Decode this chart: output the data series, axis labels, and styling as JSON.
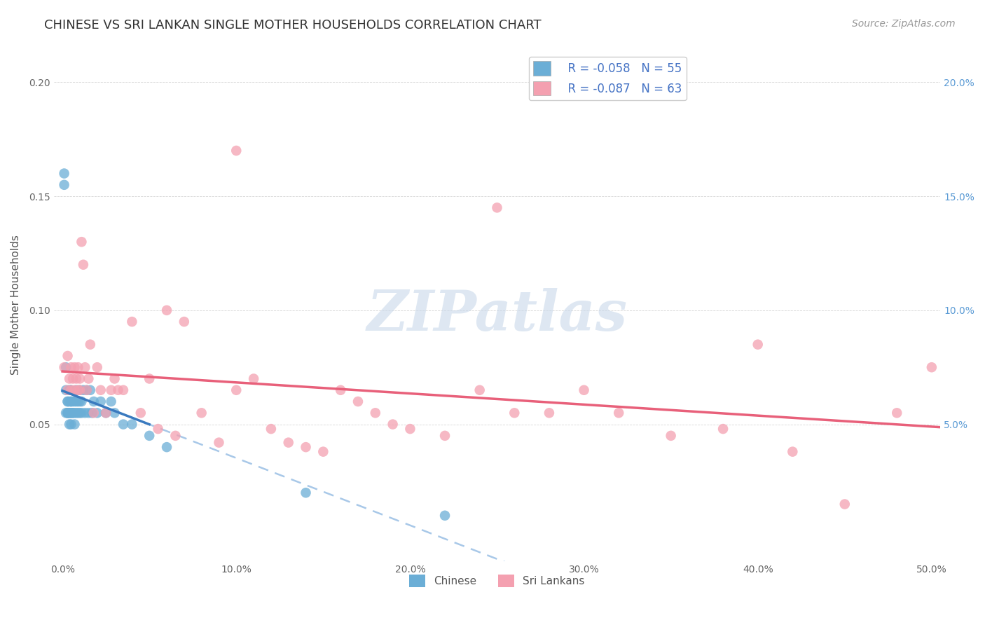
{
  "title": "CHINESE VS SRI LANKAN SINGLE MOTHER HOUSEHOLDS CORRELATION CHART",
  "source": "Source: ZipAtlas.com",
  "xlabel_ticks": [
    "0.0%",
    "10.0%",
    "20.0%",
    "30.0%",
    "40.0%",
    "50.0%"
  ],
  "xlabel_values": [
    0.0,
    0.1,
    0.2,
    0.3,
    0.4,
    0.5
  ],
  "ylabel": "Single Mother Households",
  "ylabel_right_ticks": [
    "20.0%",
    "15.0%",
    "10.0%",
    "5.0%"
  ],
  "ylabel_right_values": [
    0.2,
    0.15,
    0.1,
    0.05
  ],
  "xlim": [
    -0.005,
    0.505
  ],
  "ylim": [
    -0.01,
    0.215
  ],
  "chinese_R": -0.058,
  "chinese_N": 55,
  "srilankan_R": -0.087,
  "srilankan_N": 63,
  "chinese_color": "#6baed6",
  "srilankan_color": "#f4a0b0",
  "chinese_line_color": "#3a7abf",
  "srilankan_line_color": "#e8607a",
  "trend_line_dash_color": "#a8c8e8",
  "watermark_color": "#c8d8ea",
  "title_fontsize": 13,
  "source_fontsize": 10,
  "legend_fontsize": 12,
  "axis_label_fontsize": 11,
  "tick_fontsize": 10,
  "chinese_x": [
    0.001,
    0.001,
    0.002,
    0.002,
    0.002,
    0.003,
    0.003,
    0.003,
    0.003,
    0.003,
    0.004,
    0.004,
    0.004,
    0.004,
    0.004,
    0.005,
    0.005,
    0.005,
    0.005,
    0.005,
    0.005,
    0.006,
    0.006,
    0.006,
    0.007,
    0.007,
    0.007,
    0.008,
    0.008,
    0.008,
    0.009,
    0.009,
    0.01,
    0.01,
    0.01,
    0.011,
    0.011,
    0.012,
    0.013,
    0.014,
    0.015,
    0.016,
    0.017,
    0.018,
    0.02,
    0.022,
    0.025,
    0.028,
    0.03,
    0.035,
    0.04,
    0.05,
    0.06,
    0.14,
    0.22
  ],
  "chinese_y": [
    0.155,
    0.16,
    0.075,
    0.065,
    0.055,
    0.06,
    0.055,
    0.055,
    0.055,
    0.06,
    0.05,
    0.055,
    0.06,
    0.055,
    0.065,
    0.05,
    0.055,
    0.06,
    0.055,
    0.06,
    0.065,
    0.055,
    0.06,
    0.055,
    0.05,
    0.055,
    0.06,
    0.06,
    0.055,
    0.065,
    0.055,
    0.06,
    0.06,
    0.055,
    0.065,
    0.055,
    0.06,
    0.065,
    0.055,
    0.065,
    0.055,
    0.065,
    0.055,
    0.06,
    0.055,
    0.06,
    0.055,
    0.06,
    0.055,
    0.05,
    0.05,
    0.045,
    0.04,
    0.02,
    0.01
  ],
  "srilankan_x": [
    0.001,
    0.003,
    0.003,
    0.004,
    0.005,
    0.005,
    0.006,
    0.007,
    0.007,
    0.008,
    0.009,
    0.009,
    0.01,
    0.01,
    0.011,
    0.012,
    0.013,
    0.014,
    0.015,
    0.016,
    0.018,
    0.02,
    0.022,
    0.025,
    0.028,
    0.03,
    0.032,
    0.035,
    0.04,
    0.045,
    0.05,
    0.055,
    0.06,
    0.065,
    0.07,
    0.08,
    0.09,
    0.1,
    0.11,
    0.12,
    0.13,
    0.14,
    0.15,
    0.16,
    0.17,
    0.18,
    0.19,
    0.2,
    0.22,
    0.24,
    0.26,
    0.28,
    0.3,
    0.32,
    0.35,
    0.38,
    0.4,
    0.42,
    0.45,
    0.48,
    0.1,
    0.25,
    0.5
  ],
  "srilankan_y": [
    0.075,
    0.08,
    0.065,
    0.07,
    0.065,
    0.075,
    0.07,
    0.065,
    0.075,
    0.07,
    0.065,
    0.075,
    0.065,
    0.07,
    0.13,
    0.12,
    0.075,
    0.065,
    0.07,
    0.085,
    0.055,
    0.075,
    0.065,
    0.055,
    0.065,
    0.07,
    0.065,
    0.065,
    0.095,
    0.055,
    0.07,
    0.048,
    0.1,
    0.045,
    0.095,
    0.055,
    0.042,
    0.065,
    0.07,
    0.048,
    0.042,
    0.04,
    0.038,
    0.065,
    0.06,
    0.055,
    0.05,
    0.048,
    0.045,
    0.065,
    0.055,
    0.055,
    0.065,
    0.055,
    0.045,
    0.048,
    0.085,
    0.038,
    0.015,
    0.055,
    0.17,
    0.145,
    0.075
  ]
}
